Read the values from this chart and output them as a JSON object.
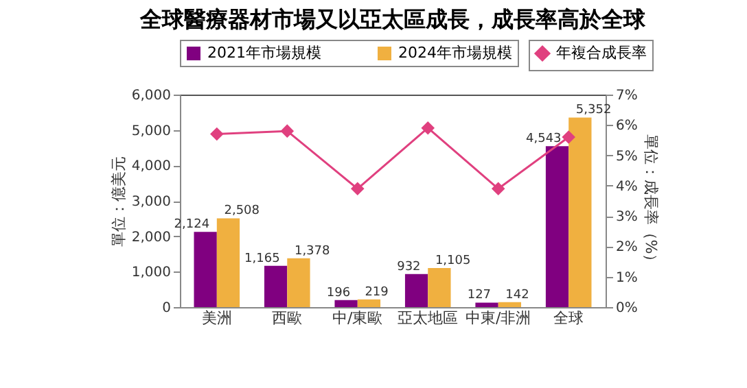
{
  "chart_data": {
    "type": "bar",
    "title": "全球醫療器材市場又以亞太區成長，成長率高於全球",
    "ylabel": "單位：億美元",
    "y2label": "單位：成長率（%）",
    "categories": [
      "美洲",
      "西歐",
      "中/東歐",
      "亞太地區",
      "中東/非洲",
      "全球"
    ],
    "series": [
      {
        "name": "2021年市場規模",
        "color": "#800080",
        "values": [
          2124,
          1165,
          196,
          932,
          127,
          4543
        ],
        "value_labels": [
          "2,124",
          "1,165",
          "196",
          "932",
          "127",
          "4,543"
        ]
      },
      {
        "name": "2024年市場規模",
        "color": "#f0b040",
        "values": [
          2508,
          1378,
          219,
          1105,
          142,
          5352
        ],
        "value_labels": [
          "2,508",
          "1,378",
          "219",
          "1,105",
          "142",
          "5,352"
        ]
      },
      {
        "name": "年複合成長率",
        "type": "line",
        "axis": "y2",
        "color": "#e0407f",
        "values": [
          5.7,
          5.8,
          3.9,
          5.9,
          3.9,
          5.6
        ]
      }
    ],
    "ylim": [
      0,
      6000
    ],
    "yticks": [
      0,
      {
        "value": 1000,
        "label": "1,000"
      },
      {
        "value": 2000,
        "label": "2,000"
      },
      {
        "value": 3000,
        "label": "3,000"
      },
      {
        "value": 4000,
        "label": "4,000"
      },
      {
        "value": 5000,
        "label": "5,000"
      },
      {
        "value": 6000,
        "label": "6,000"
      }
    ],
    "y2lim": [
      0,
      7
    ],
    "y2ticks": [
      {
        "value": 0,
        "label": "0%"
      },
      {
        "value": 1,
        "label": "1%"
      },
      {
        "value": 2,
        "label": "2%"
      },
      {
        "value": 3,
        "label": "3%"
      },
      {
        "value": 4,
        "label": "4%"
      },
      {
        "value": 5,
        "label": "5%"
      },
      {
        "value": 6,
        "label": "6%"
      },
      {
        "value": 7,
        "label": "7%"
      }
    ],
    "grid": false,
    "legend": "top",
    "marker": "diamond"
  }
}
